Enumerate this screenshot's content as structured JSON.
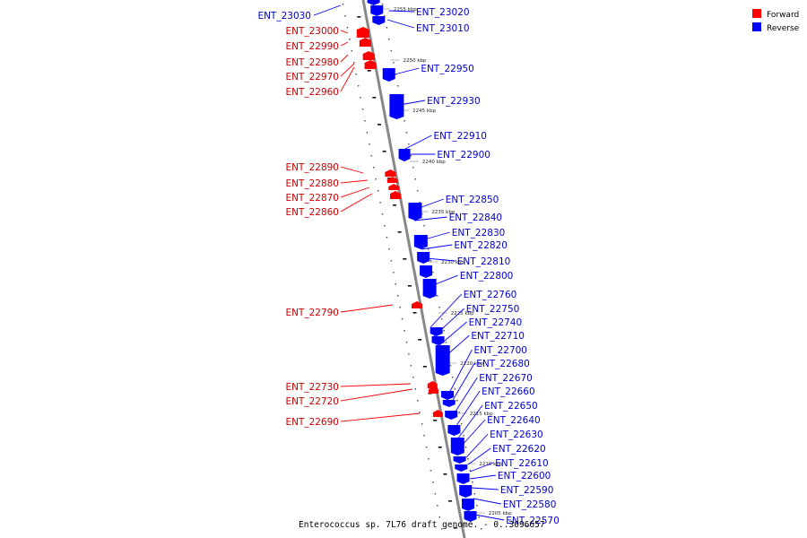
{
  "colors": {
    "forward": "#ff0000",
    "reverse": "#0000ff",
    "forward_label": "#cc0000",
    "reverse_label": "#0000cc",
    "backbone": "#888888"
  },
  "legend": {
    "forward": "Forward",
    "reverse": "Reverse"
  },
  "caption": "Enterococcus sp. 7L76 draft genome. - 0..3096657",
  "ticks": [
    "2255 kbp",
    "2250 kbp",
    "2245 kbp",
    "2240 kbp",
    "2235 kbp",
    "2230 kbp",
    "2225 kbp",
    "2220 kbp",
    "2215 kbp",
    "2210 kbp",
    "2205 kbp"
  ],
  "genes_forward": [
    "ENT_23000",
    "ENT_22990",
    "ENT_22980",
    "ENT_22970",
    "ENT_22960",
    "ENT_22890",
    "ENT_22880",
    "ENT_22870",
    "ENT_22860",
    "ENT_22790",
    "ENT_22730",
    "ENT_22720",
    "ENT_22690"
  ],
  "genes_reverse": [
    "ENT_23030",
    "ENT_23020",
    "ENT_23010",
    "ENT_22950",
    "ENT_22930",
    "ENT_22910",
    "ENT_22900",
    "ENT_22850",
    "ENT_22840",
    "ENT_22830",
    "ENT_22820",
    "ENT_22810",
    "ENT_22800",
    "ENT_22760",
    "ENT_22750",
    "ENT_22740",
    "ENT_22710",
    "ENT_22700",
    "ENT_22680",
    "ENT_22670",
    "ENT_22660",
    "ENT_22650",
    "ENT_22640",
    "ENT_22630",
    "ENT_22620",
    "ENT_22610",
    "ENT_22600",
    "ENT_22590",
    "ENT_22580",
    "ENT_22570"
  ]
}
